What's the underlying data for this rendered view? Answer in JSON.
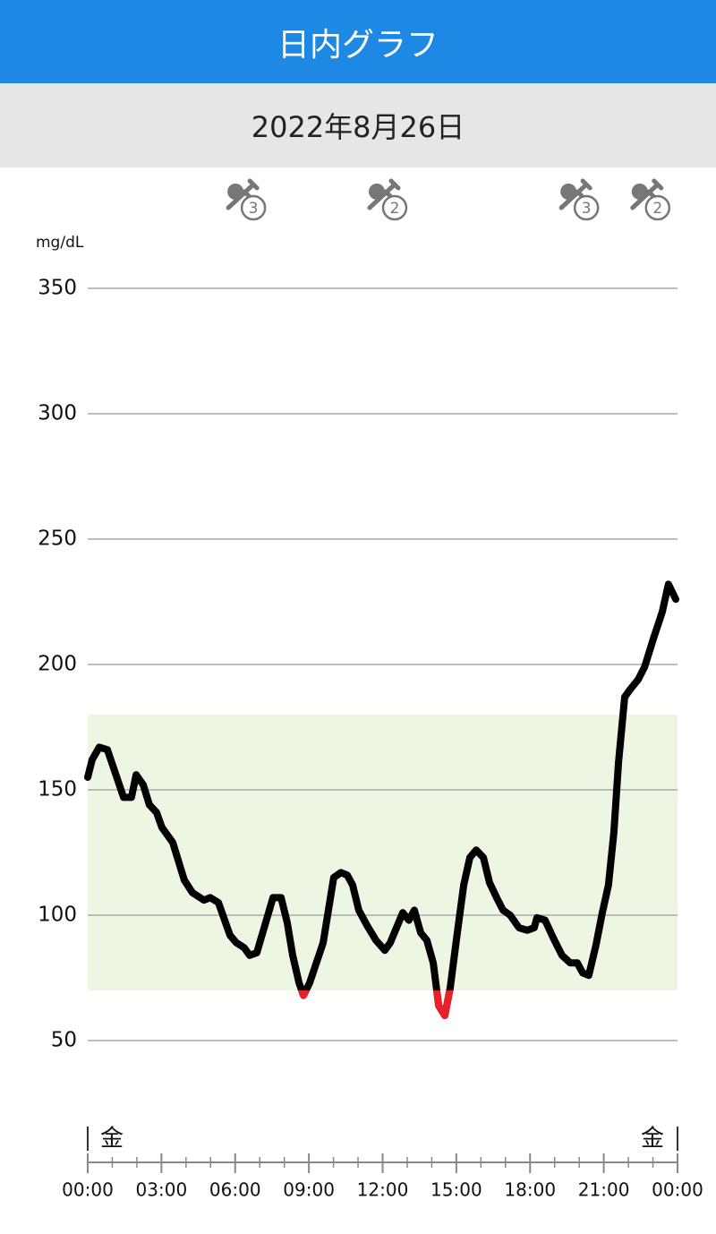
{
  "header": {
    "title": "日内グラフ",
    "date": "2022年8月26日"
  },
  "chart_data": {
    "type": "line",
    "ylabel": "mg/dL",
    "xlim": [
      0,
      24
    ],
    "ylim": [
      50,
      350
    ],
    "yticks": [
      50,
      100,
      150,
      200,
      250,
      300,
      350
    ],
    "xticks": [
      {
        "value": 0,
        "label": "00:00"
      },
      {
        "value": 3,
        "label": "03:00"
      },
      {
        "value": 6,
        "label": "06:00"
      },
      {
        "value": 9,
        "label": "09:00"
      },
      {
        "value": 12,
        "label": "12:00"
      },
      {
        "value": 15,
        "label": "15:00"
      },
      {
        "value": 18,
        "label": "18:00"
      },
      {
        "value": 21,
        "label": "21:00"
      },
      {
        "value": 24,
        "label": "00:00"
      }
    ],
    "xminorticks": [
      1,
      2,
      4,
      5,
      7,
      8,
      10,
      11,
      13,
      14,
      16,
      17,
      19,
      20,
      22,
      23
    ],
    "grid": true,
    "target_range": [
      70,
      180
    ],
    "target_color": "#edf5e3",
    "low_color": "#e8202a",
    "day_labels": [
      "金",
      "金"
    ],
    "events": [
      {
        "x": 6.45,
        "label": "3"
      },
      {
        "x": 12.2,
        "label": "2"
      },
      {
        "x": 20.0,
        "label": "3"
      },
      {
        "x": 22.9,
        "label": "2"
      }
    ],
    "x": [
      0,
      0.18,
      0.47,
      0.8,
      1.46,
      1.78,
      1.97,
      2.26,
      2.51,
      2.8,
      3.02,
      3.46,
      3.93,
      4.26,
      4.73,
      4.99,
      5.32,
      5.79,
      6.05,
      6.37,
      6.59,
      6.88,
      7.54,
      7.87,
      8.12,
      8.34,
      8.6,
      8.78,
      9.03,
      9.58,
      10.01,
      10.3,
      10.56,
      10.78,
      11.03,
      11.36,
      11.73,
      12.09,
      12.31,
      12.82,
      13.07,
      13.29,
      13.55,
      13.8,
      14.06,
      14.28,
      14.53,
      14.75,
      15.04,
      15.3,
      15.55,
      15.81,
      16.1,
      16.35,
      16.64,
      16.9,
      17.19,
      17.55,
      17.88,
      18.17,
      18.28,
      18.61,
      18.94,
      19.3,
      19.63,
      19.92,
      20.14,
      20.39,
      20.68,
      20.94,
      21.19,
      21.41,
      21.6,
      21.85,
      22.07,
      22.4,
      22.66,
      23.01,
      23.38,
      23.63,
      23.93
    ],
    "series": [
      {
        "color": "#000000",
        "values": [
          155,
          162,
          167,
          166,
          147,
          147,
          156,
          152,
          144,
          141,
          135,
          129,
          114,
          109,
          106,
          107,
          105,
          92,
          89,
          87,
          84,
          85,
          107,
          107,
          97,
          84,
          73,
          68,
          73,
          89,
          115,
          117,
          116,
          112,
          102,
          96,
          90,
          86,
          89,
          101,
          98,
          102,
          93,
          90,
          81,
          64,
          60,
          71,
          93,
          112,
          123,
          126,
          123,
          113,
          107,
          102,
          100,
          95,
          94,
          95,
          99,
          98,
          91,
          84,
          81,
          81,
          77,
          76,
          88,
          101,
          112,
          133,
          161,
          187,
          190,
          194,
          199,
          210,
          221,
          232,
          226
        ]
      }
    ]
  }
}
